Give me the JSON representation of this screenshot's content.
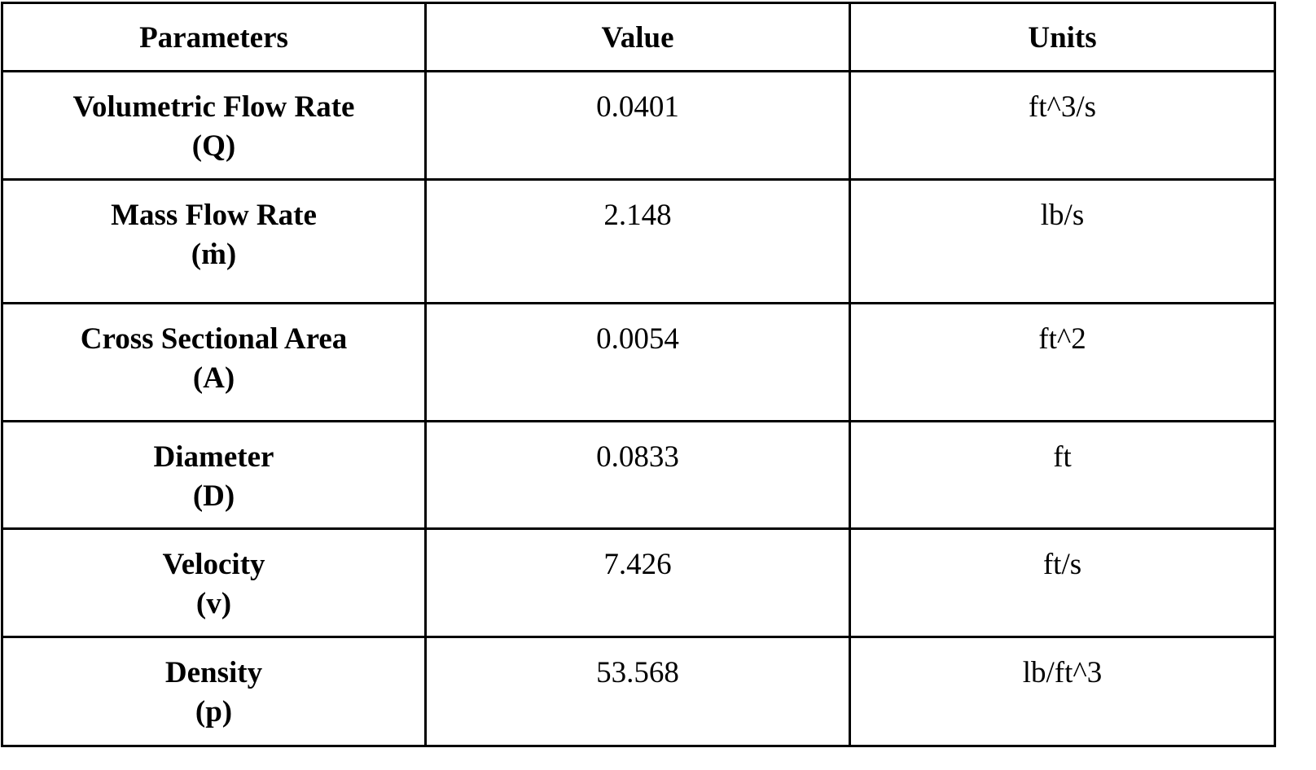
{
  "table": {
    "headers": [
      "Parameters",
      "Value",
      "Units"
    ],
    "rows": [
      {
        "parameter": "Volumetric Flow Rate",
        "symbol": "(Q)",
        "value": "0.0401",
        "units": "ft^3/s"
      },
      {
        "parameter": "Mass Flow Rate",
        "symbol": "(ṁ)",
        "value": "2.148",
        "units": "lb/s"
      },
      {
        "parameter": "Cross Sectional Area",
        "symbol": "(A)",
        "value": "0.0054",
        "units": "ft^2"
      },
      {
        "parameter": "Diameter",
        "symbol": "(D)",
        "value": "0.0833",
        "units": "ft"
      },
      {
        "parameter": "Velocity",
        "symbol": "(v)",
        "value": "7.426",
        "units": "ft/s"
      },
      {
        "parameter": "Density",
        "symbol": "(p)",
        "value": "53.568",
        "units": "lb/ft^3"
      }
    ]
  }
}
